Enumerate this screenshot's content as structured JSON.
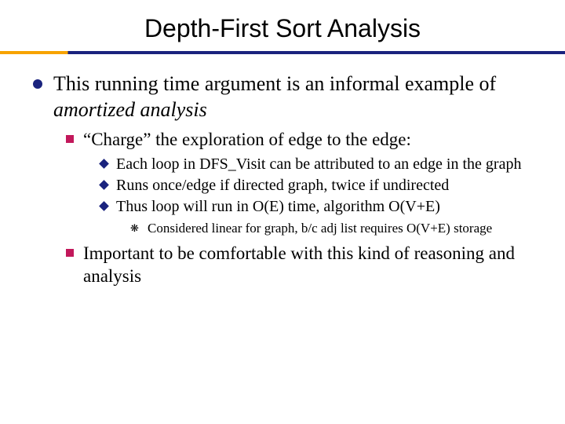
{
  "title": "Depth-First Sort Analysis",
  "colors": {
    "title_text": "#000000",
    "rule_left": "#f7a300",
    "rule_right": "#1a237e",
    "bullet_circle": "#1a237e",
    "bullet_square": "#c2185b",
    "bullet_diamond": "#1a237e",
    "background": "#ffffff"
  },
  "typography": {
    "title_font": "Arial",
    "title_fontsize": 32,
    "body_font": "Times New Roman",
    "l1_fontsize": 26,
    "l2_fontsize": 23,
    "l3_fontsize": 20,
    "l4_fontsize": 17
  },
  "l1": {
    "text_a": "This running time argument is an informal example of ",
    "text_b_italic": "amortized analysis"
  },
  "l2a": {
    "text": "“Charge” the exploration of edge to the edge:"
  },
  "l3a": {
    "text": "Each loop in DFS_Visit can be attributed to an edge in the graph"
  },
  "l3b": {
    "text": "Runs once/edge if directed graph, twice if undirected"
  },
  "l3c": {
    "text": "Thus loop will run in O(E) time, algorithm O(V+E)"
  },
  "l4a": {
    "text": "Considered linear for graph, b/c adj list requires O(V+E) storage"
  },
  "l2b": {
    "text": "Important to be comfortable with this kind of reasoning and analysis"
  }
}
